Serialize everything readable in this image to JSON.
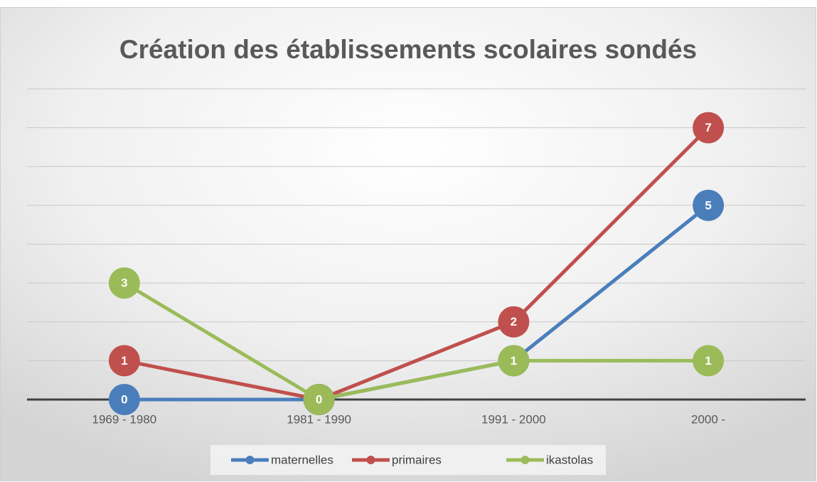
{
  "chart_data": {
    "type": "line",
    "title": "Création des établissements scolaires sondés",
    "categories": [
      "1969 - 1980",
      "1981 - 1990",
      "1991 - 2000",
      "2000 -"
    ],
    "series": [
      {
        "name": "maternelles",
        "color": "#4a7ebb",
        "values": [
          0,
          0,
          1,
          5
        ]
      },
      {
        "name": "primaires",
        "color": "#c0504d",
        "values": [
          1,
          0,
          2,
          7
        ]
      },
      {
        "name": "ikastolas",
        "color": "#9bbb59",
        "values": [
          3,
          0,
          1,
          1
        ]
      }
    ],
    "ylim": [
      0,
      8
    ],
    "yticks": [
      0,
      1,
      2,
      3,
      4,
      5,
      6,
      7,
      8
    ],
    "grid": true,
    "legend": "bottom"
  }
}
